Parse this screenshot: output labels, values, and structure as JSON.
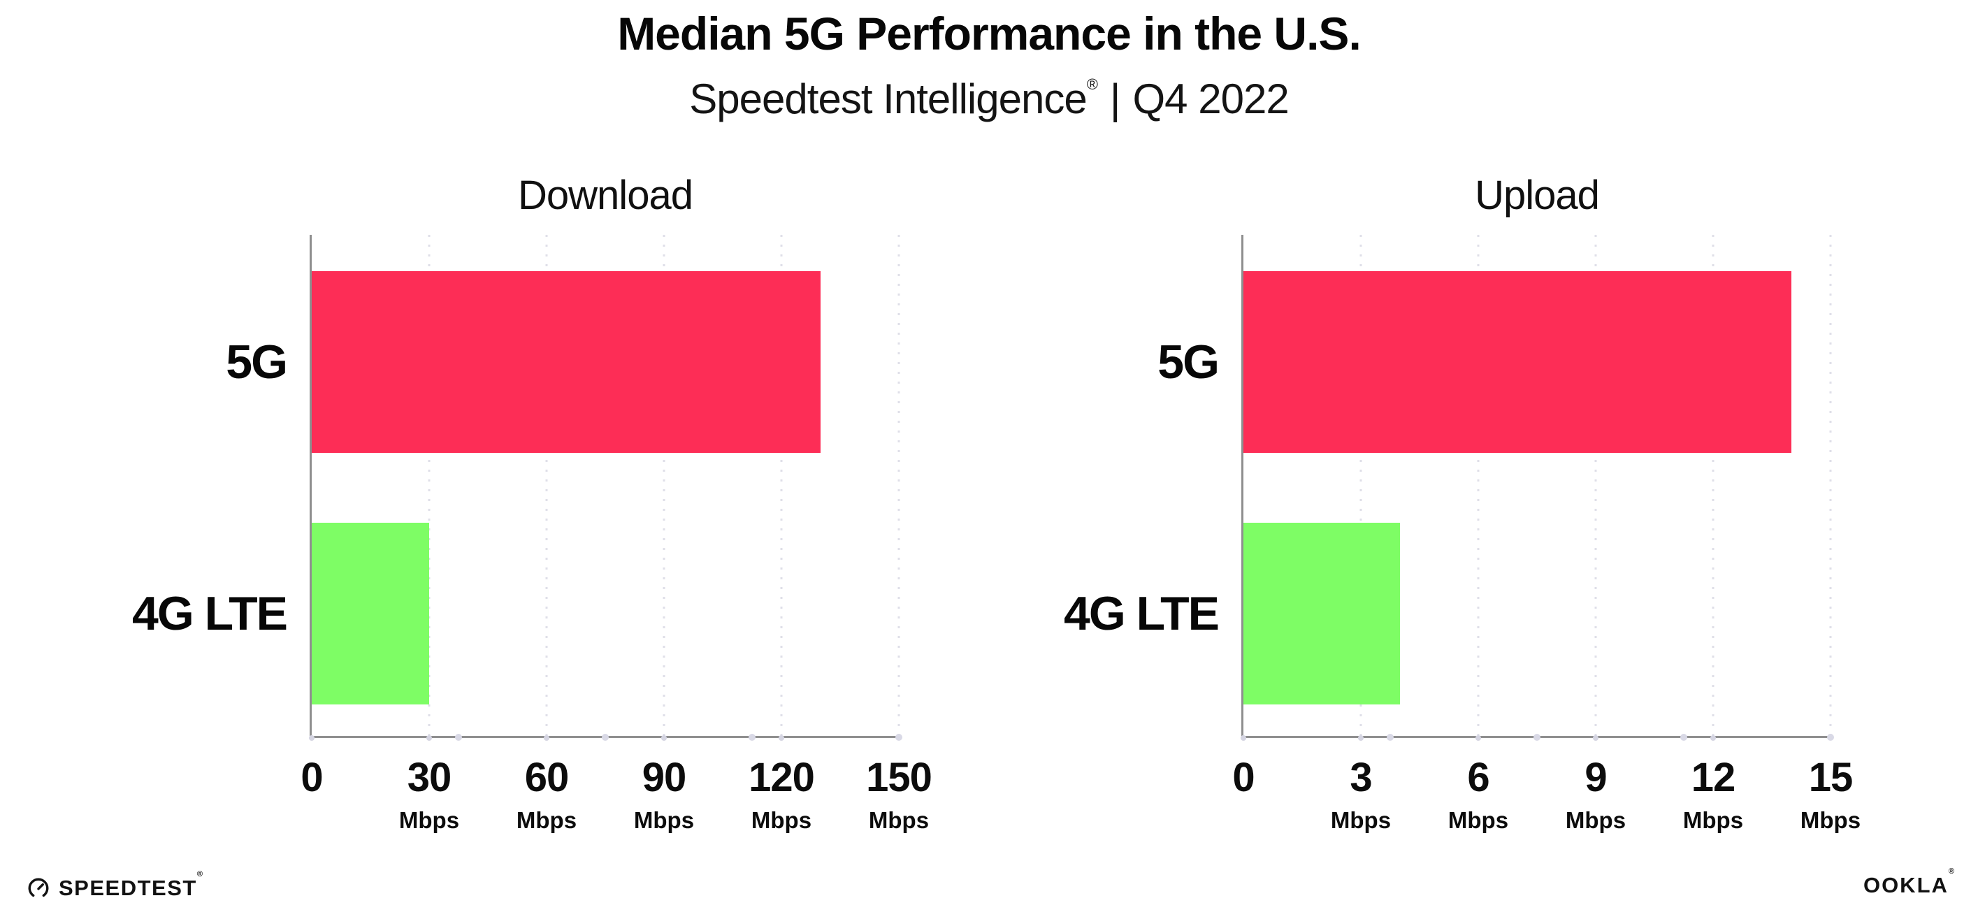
{
  "header": {
    "title": "Median 5G Performance in the U.S.",
    "subtitle_brand": "Speedtest Intelligence",
    "subtitle_reg": "®",
    "subtitle_separator": "|",
    "subtitle_period": "Q4 2022"
  },
  "footer": {
    "speedtest_label": "SPEEDTEST",
    "speedtest_reg": "®",
    "ookla_label": "OOKLA",
    "ookla_reg": "®"
  },
  "colors": {
    "bar_5g": "#FD2D56",
    "bar_4g_lte": "#7EFD65",
    "axis": "#8f8f8f",
    "gridline": "#dfdfe8",
    "text": "#0c0c0c"
  },
  "chart_data": [
    {
      "type": "bar",
      "orientation": "horizontal",
      "title": "Download",
      "categories": [
        "5G",
        "4G LTE"
      ],
      "values": [
        130,
        30
      ],
      "unit": "Mbps",
      "xlim": [
        0,
        150
      ],
      "xticks": [
        0,
        30,
        60,
        90,
        120,
        150
      ],
      "tick_unit": "Mbps",
      "grid": "dotted-vertical",
      "legend": "none",
      "colors": [
        "#FD2D56",
        "#7EFD65"
      ]
    },
    {
      "type": "bar",
      "orientation": "horizontal",
      "title": "Upload",
      "categories": [
        "5G",
        "4G LTE"
      ],
      "values": [
        14,
        4
      ],
      "unit": "Mbps",
      "xlim": [
        0,
        15
      ],
      "xticks": [
        0,
        3,
        6,
        9,
        12,
        15
      ],
      "tick_unit": "Mbps",
      "grid": "dotted-vertical",
      "legend": "none",
      "colors": [
        "#FD2D56",
        "#7EFD65"
      ]
    }
  ]
}
